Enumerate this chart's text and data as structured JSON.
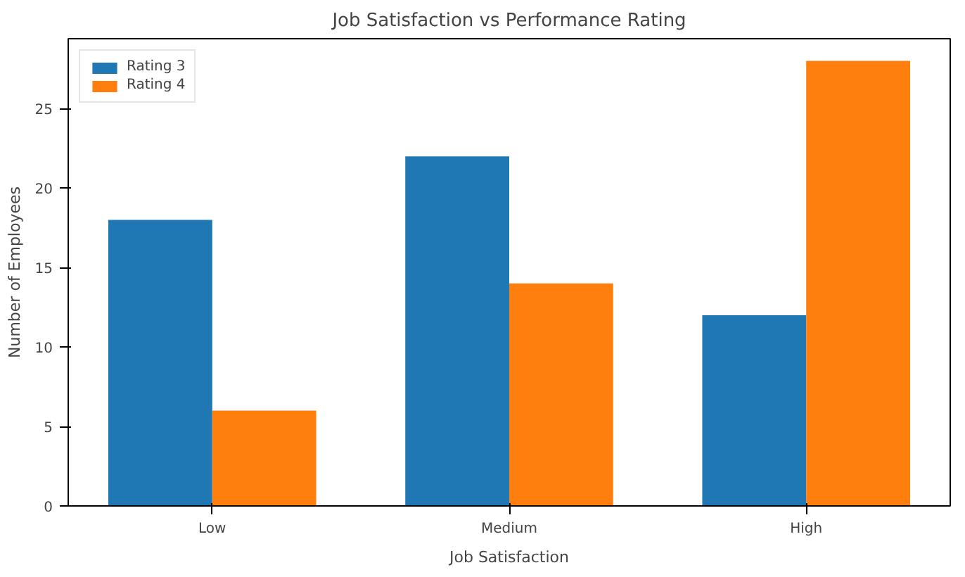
{
  "chart_data": {
    "type": "bar",
    "title": "Job Satisfaction vs Performance Rating",
    "xlabel": "Job Satisfaction",
    "ylabel": "Number of Employees",
    "categories": [
      "Low",
      "Medium",
      "High"
    ],
    "series": [
      {
        "name": "Rating 3",
        "color": "#1f77b4",
        "values": [
          18,
          22,
          12
        ]
      },
      {
        "name": "Rating 4",
        "color": "#ff7f0e",
        "values": [
          6,
          14,
          28
        ]
      }
    ],
    "ylim": [
      0,
      29.4
    ],
    "yticks": [
      0,
      5,
      10,
      15,
      20,
      25
    ],
    "grid": false,
    "legend": "top left"
  }
}
